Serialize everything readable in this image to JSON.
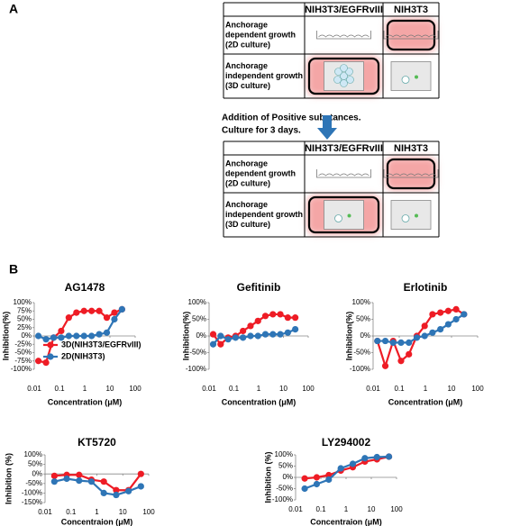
{
  "panels": {
    "a": "A",
    "b": "B"
  },
  "note": [
    "Addition of Positive substances.",
    "Culture for 3 days."
  ],
  "table_top": {
    "headers": [
      "NIH3T3/EGFRvIII",
      "NIH3T3"
    ],
    "rows": [
      [
        "Anchorage",
        "dependent growth",
        "(2D culture)"
      ],
      [
        "Anchorage",
        "independent growth",
        "(3D culture)"
      ]
    ]
  },
  "table_bottom": {
    "headers": [
      "NIH3T3/EGFRvIII",
      "NIH3T3"
    ],
    "rows": [
      [
        "Anchorage",
        "dependent growth",
        "(2D culture)"
      ],
      [
        "Anchorage",
        "independent growth",
        "(3D culture)"
      ]
    ]
  },
  "chart_data": [
    {
      "type": "line",
      "title": "AG1478",
      "xlabel": "Concentration (μM)",
      "ylabel": "Inhibition(%)",
      "xlog": true,
      "xlim": [
        0.01,
        100
      ],
      "xticks": [
        0.01,
        0.1,
        1,
        10,
        100
      ],
      "ylim": [
        -100,
        100
      ],
      "yticks": [
        {
          "value": 100,
          "label": "100%"
        },
        {
          "value": 75,
          "label": "75%"
        },
        {
          "value": 50,
          "label": "50%"
        },
        {
          "value": 25,
          "label": "25%"
        },
        {
          "value": 0,
          "label": "0%"
        },
        {
          "value": -25,
          "label": "-25%"
        },
        {
          "value": -50,
          "label": "-50%"
        },
        {
          "value": -75,
          "label": "-75%"
        },
        {
          "value": -100,
          "label": "-100%"
        }
      ],
      "x": [
        0.0146,
        0.0293,
        0.0586,
        0.117,
        0.234,
        0.469,
        0.938,
        1.875,
        3.75,
        7.5,
        15,
        30
      ],
      "series": [
        {
          "name": "3D(NIH3T3/EGFRvIII)",
          "color": "#ee1c25",
          "values": [
            -75,
            -80,
            -5,
            15,
            55,
            70,
            75,
            75,
            75,
            55,
            70,
            80
          ]
        },
        {
          "name": "2D(NIH3T3)",
          "color": "#2e75b6",
          "values": [
            0,
            -10,
            -5,
            -5,
            0,
            0,
            0,
            0,
            5,
            10,
            50,
            80
          ]
        }
      ]
    },
    {
      "type": "line",
      "title": "Gefitinib",
      "xlabel": "Concentration (μM)",
      "ylabel": "Inhibition(%)",
      "xlog": true,
      "xlim": [
        0.01,
        100
      ],
      "xticks": [
        0.01,
        0.1,
        1,
        10,
        100
      ],
      "ylim": [
        -100,
        100
      ],
      "yticks": [
        {
          "value": 100,
          "label": "100%"
        },
        {
          "value": 50,
          "label": "50%"
        },
        {
          "value": 0,
          "label": "0%"
        },
        {
          "value": -50,
          "label": "-50%"
        },
        {
          "value": -100,
          "label": "-100%"
        }
      ],
      "x": [
        0.0146,
        0.0293,
        0.0586,
        0.117,
        0.234,
        0.469,
        0.938,
        1.875,
        3.75,
        7.5,
        15,
        30
      ],
      "series": [
        {
          "color": "#ee1c25",
          "values": [
            5,
            -25,
            -5,
            0,
            15,
            30,
            45,
            60,
            65,
            65,
            55,
            55
          ]
        },
        {
          "color": "#2e75b6",
          "values": [
            -25,
            0,
            -10,
            -5,
            -5,
            0,
            0,
            5,
            5,
            5,
            10,
            20
          ]
        }
      ]
    },
    {
      "type": "line",
      "title": "Erlotinib",
      "xlabel": "Concentration (μM)",
      "ylabel": "Inhibition(%)",
      "xlog": true,
      "xlim": [
        0.01,
        100
      ],
      "xticks": [
        0.01,
        0.1,
        1,
        10,
        100
      ],
      "ylim": [
        -100,
        100
      ],
      "yticks": [
        {
          "value": 100,
          "label": "100%"
        },
        {
          "value": 50,
          "label": "50%"
        },
        {
          "value": 0,
          "label": "0%"
        },
        {
          "value": -50,
          "label": "-50%"
        },
        {
          "value": -100,
          "label": "-100%"
        }
      ],
      "x": [
        0.0146,
        0.0293,
        0.0586,
        0.117,
        0.234,
        0.469,
        0.938,
        1.875,
        3.75,
        7.5,
        15,
        30
      ],
      "series": [
        {
          "color": "#ee1c25",
          "values": [
            -15,
            -90,
            -15,
            -75,
            -55,
            0,
            30,
            65,
            70,
            75,
            80,
            65
          ]
        },
        {
          "color": "#2e75b6",
          "values": [
            -15,
            -15,
            -20,
            -20,
            -20,
            -5,
            0,
            10,
            20,
            35,
            50,
            65
          ]
        }
      ]
    },
    {
      "type": "line",
      "title": "KT5720",
      "xlabel": "Concentraion (μM)",
      "ylabel": "Inhibition (%)",
      "xlog": true,
      "xlim": [
        0.01,
        100
      ],
      "xticks": [
        0.01,
        0.1,
        1,
        10,
        100
      ],
      "ylim": [
        -150,
        100
      ],
      "yticks": [
        {
          "value": 100,
          "label": "100%"
        },
        {
          "value": 50,
          "label": "50%"
        },
        {
          "value": 0,
          "label": "0%"
        },
        {
          "value": -50,
          "label": "-50%"
        },
        {
          "value": -100,
          "label": "-100%"
        },
        {
          "value": -150,
          "label": "-150%"
        }
      ],
      "x": [
        0.0229,
        0.0686,
        0.206,
        0.617,
        1.85,
        5.56,
        16.7,
        50
      ],
      "series": [
        {
          "color": "#ee1c25",
          "values": [
            -10,
            -5,
            -5,
            -30,
            -40,
            -85,
            -85,
            0
          ]
        },
        {
          "color": "#2e75b6",
          "values": [
            -40,
            -25,
            -35,
            -40,
            -100,
            -110,
            -90,
            -65
          ]
        }
      ]
    },
    {
      "type": "line",
      "title": "LY294002",
      "xlabel": "Concentraion (μM)",
      "ylabel": "Inhibition (%)",
      "xlog": true,
      "xlim": [
        0.01,
        100
      ],
      "xticks": [
        0.01,
        0.1,
        1,
        10,
        100
      ],
      "ylim": [
        -100,
        100
      ],
      "yticks": [
        {
          "value": 100,
          "label": "100%"
        },
        {
          "value": 50,
          "label": "50%"
        },
        {
          "value": 0,
          "label": "0%"
        },
        {
          "value": -50,
          "label": "-50%"
        },
        {
          "value": -100,
          "label": "-100%"
        }
      ],
      "x": [
        0.0229,
        0.0686,
        0.206,
        0.617,
        1.85,
        5.56,
        16.7,
        50
      ],
      "series": [
        {
          "color": "#ee1c25",
          "values": [
            -5,
            0,
            10,
            30,
            45,
            70,
            80,
            92
          ]
        },
        {
          "color": "#2e75b6",
          "values": [
            -50,
            -30,
            -10,
            40,
            60,
            85,
            90,
            92
          ]
        }
      ]
    }
  ]
}
